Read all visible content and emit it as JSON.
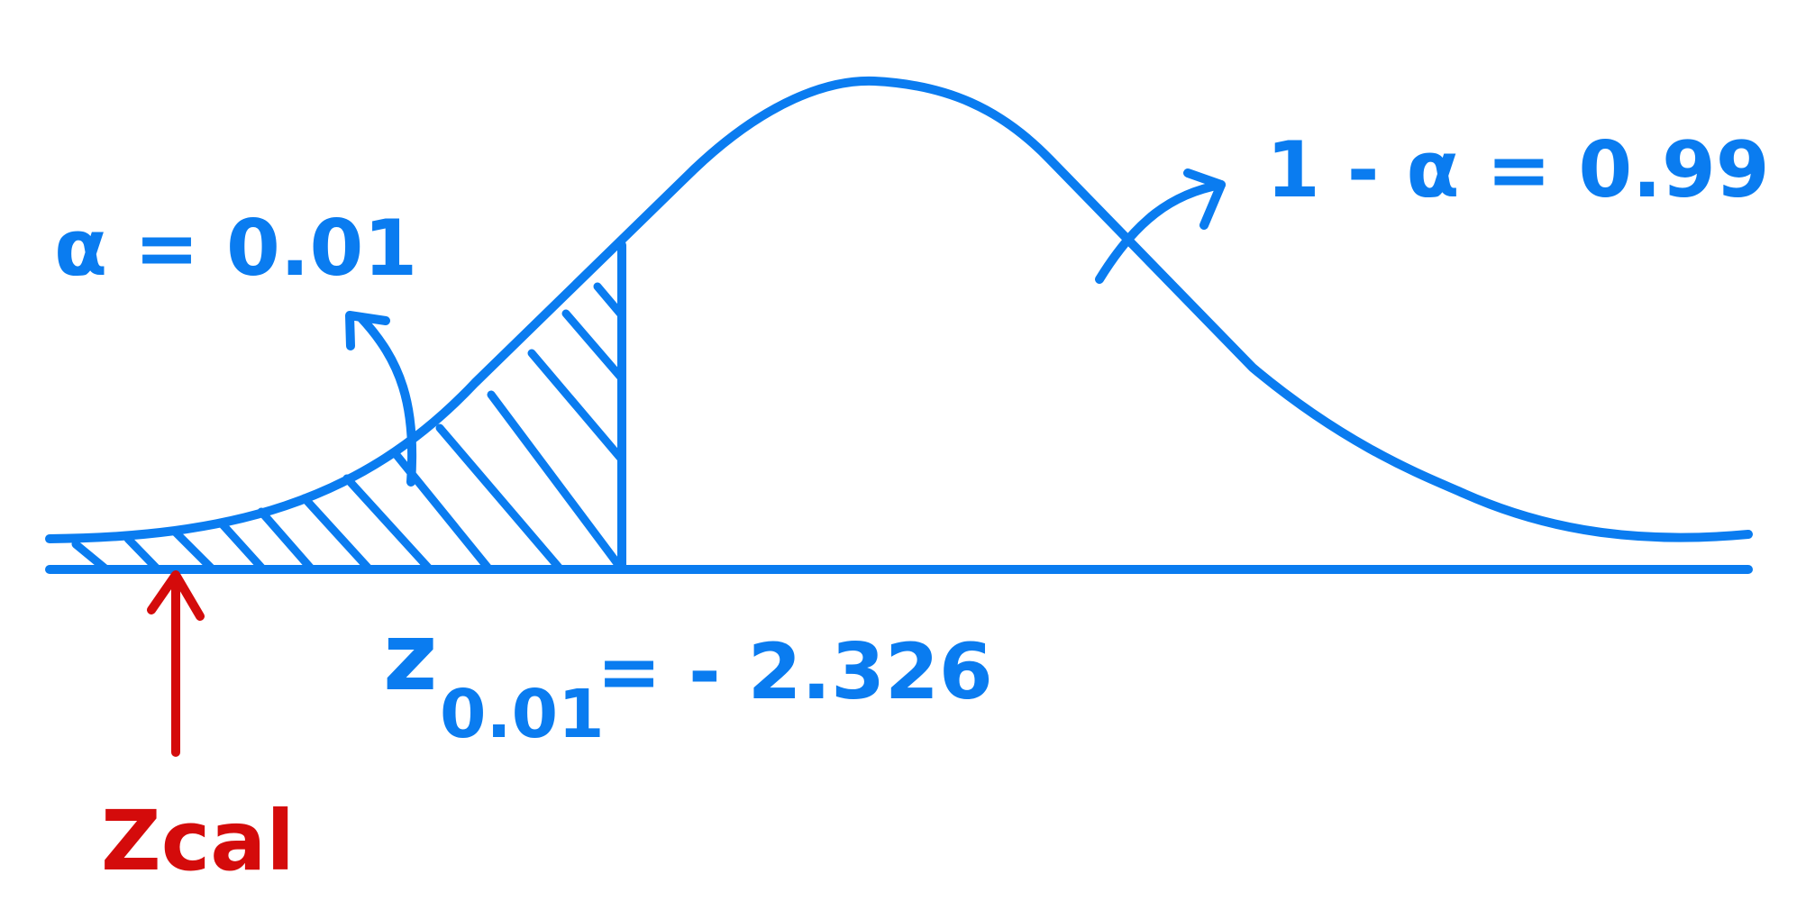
{
  "colors": {
    "curve": "#0a7cf0",
    "zcal": "#d40b0b",
    "background": "#ffffff"
  },
  "labels": {
    "alpha": "α = 0.01",
    "confidence": "1 - α = 0.99",
    "critical_z": "z",
    "critical_sub": "0.01",
    "critical_value": "= - 2.326",
    "zcal": "Zcal"
  }
}
